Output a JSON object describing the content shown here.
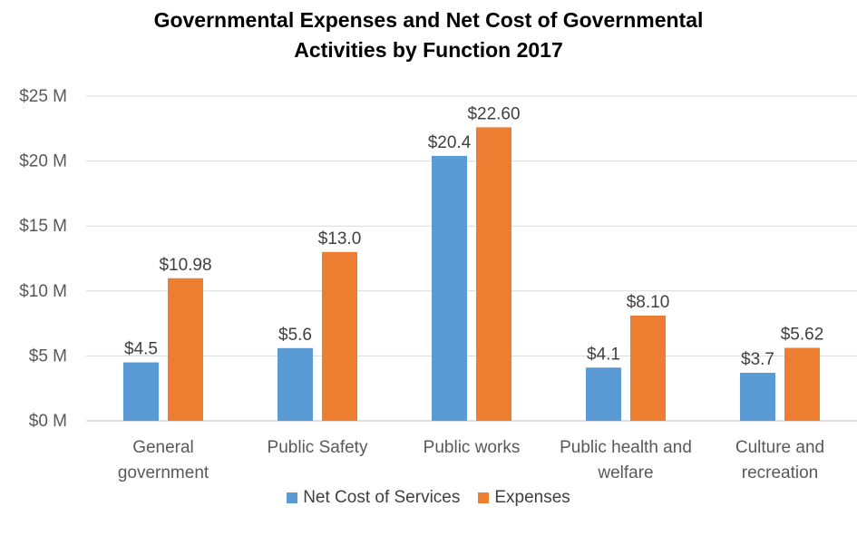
{
  "chart_data": {
    "type": "bar",
    "title_lines": [
      "Governmental Expenses and Net Cost of Governmental",
      "Activities by Function 2017"
    ],
    "categories": [
      [
        "General",
        "government"
      ],
      [
        "Public Safety"
      ],
      [
        "Public works"
      ],
      [
        "Public health and",
        "welfare"
      ],
      [
        "Culture and",
        "recreation"
      ]
    ],
    "series": [
      {
        "name": "Net Cost of Services",
        "color": "#5B9BD5",
        "values": [
          4.5,
          5.6,
          20.4,
          4.1,
          3.7
        ],
        "labels": [
          "$4.5",
          "$5.6",
          "$20.4",
          "$4.1",
          "$3.7"
        ]
      },
      {
        "name": "Expenses",
        "color": "#ED7D31",
        "values": [
          10.98,
          13.0,
          22.6,
          8.1,
          5.62
        ],
        "labels": [
          "$10.98",
          "$13.0",
          "$22.60",
          "$8.10",
          "$5.62"
        ]
      }
    ],
    "yticks": [
      0,
      5,
      10,
      15,
      20,
      25
    ],
    "ytick_labels": [
      "$0 M",
      "$5 M",
      "$10 M",
      "$15 M",
      "$20 M",
      "$25 M"
    ],
    "ylim": [
      0,
      25
    ],
    "grid": true,
    "legend_position": "bottom"
  }
}
